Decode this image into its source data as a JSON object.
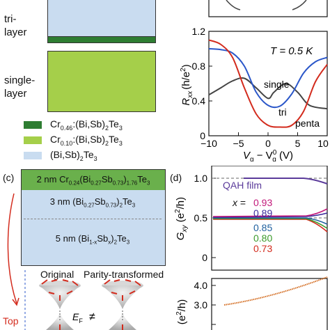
{
  "panel_top_left": {
    "layer_tri": "tri-",
    "layer_tri2": "layer",
    "layer_single": "single-",
    "layer_single2": "layer",
    "legend": [
      {
        "label_pre": "Cr",
        "sub": "0.46",
        "label_post": ":(Bi,Sb)",
        "sub2": "2",
        "te": "Te",
        "sub3": "3",
        "color": "#2e7d32"
      },
      {
        "label_pre": "Cr",
        "sub": "0.10",
        "label_post": ":(Bi,Sb)",
        "sub2": "2",
        "te": "Te",
        "sub3": "3",
        "color": "#a5cf4a"
      },
      {
        "label_pre": "(Bi,Sb)",
        "sub": "2",
        "label_post": "Te",
        "sub2": "3",
        "te": "",
        "sub3": "",
        "color": "#c9dcf0"
      }
    ],
    "colors": {
      "dark_green": "#2e7d32",
      "light_green": "#a5cf4a",
      "light_blue": "#c9dcf0"
    }
  },
  "panel_top_right": {
    "temperature": "T = 0.5 K",
    "ylabel_main": "R",
    "ylabel_sub": "xx",
    "ylabel_unit": "(h/e",
    "ylabel_sup": "2",
    "ylabel_close": ")",
    "xlabel_main": "V",
    "xlabel_sub": "g",
    "xlabel_minus": " − V",
    "xlabel_sup": "0",
    "xlabel_sub2": "g",
    "xlabel_unit": " (V)",
    "yticks": [
      "1.2",
      "0.8",
      "0.4",
      "0"
    ],
    "xticks": [
      "−10",
      "−5",
      "0",
      "5",
      "10"
    ],
    "curve_labels": {
      "single": "single",
      "tri": "tri",
      "penta": "penta"
    }
  },
  "chart_data": {
    "type": "line",
    "xlabel": "Vg − Vg0 (V)",
    "ylabel": "Rxx (h/e2)",
    "xlim": [
      -10,
      10
    ],
    "ylim": [
      0,
      1.2
    ],
    "series": [
      {
        "name": "single",
        "color": "#444444",
        "x": [
          -10,
          -8,
          -6,
          -4,
          -2,
          0,
          1,
          3,
          5,
          7,
          10
        ],
        "y": [
          0.47,
          0.55,
          0.63,
          0.66,
          0.55,
          0.43,
          0.5,
          0.6,
          0.5,
          0.35,
          0.31
        ]
      },
      {
        "name": "tri",
        "color": "#2b57c9",
        "x": [
          -10,
          -8,
          -6,
          -4,
          -2,
          0,
          2,
          4,
          6,
          8,
          10
        ],
        "y": [
          1.0,
          0.99,
          0.95,
          0.8,
          0.5,
          0.35,
          0.34,
          0.48,
          0.72,
          0.85,
          0.9
        ]
      },
      {
        "name": "penta",
        "color": "#d32b1d",
        "x": [
          -10,
          -8,
          -6,
          -4,
          -2,
          0,
          2,
          4,
          6,
          8,
          10
        ],
        "y": [
          1.1,
          1.05,
          0.9,
          0.55,
          0.25,
          0.12,
          0.1,
          0.12,
          0.28,
          0.62,
          0.82
        ]
      }
    ]
  },
  "panel_c": {
    "label": "(c)",
    "layer1_pre": "2 nm Cr",
    "layer1_s1": "0.24",
    "layer1_mid": "(Bi",
    "layer1_s2": "0.27",
    "layer1_mid2": "Sb",
    "layer1_s3": "0.73",
    "layer1_mid3": ")",
    "layer1_s4": "1.76",
    "layer1_end": "Te",
    "layer1_s5": "3",
    "layer2_pre": "3 nm (Bi",
    "layer2_s1": "0.27",
    "layer2_mid": "Sb",
    "layer2_s2": "0.73",
    "layer2_mid2": ")",
    "layer2_s3": "2",
    "layer2_end": "Te",
    "layer2_s4": "3",
    "layer3_pre": "5 nm (Bi",
    "layer3_s1": "1-x",
    "layer3_mid": "Sb",
    "layer3_s2": "x",
    "layer3_mid2": ")",
    "layer3_s3": "2",
    "layer3_end": "Te",
    "layer3_s4": "3",
    "original": "Original",
    "parity": "Parity-transformed",
    "top": "Top",
    "ef": "E",
    "ef_sub": "F",
    "neq": "≠"
  },
  "panel_d": {
    "label": "(d)",
    "qah": "QAH film",
    "yticks": [
      "1.0",
      "0.5",
      "0"
    ],
    "ylabel_main": "G",
    "ylabel_sub": "xy",
    "ylabel_unit": " (e",
    "ylabel_sup": "2",
    "ylabel_close": "/h)",
    "x_eq": "x = 0.93",
    "values": [
      {
        "label": "0.89",
        "color": "#3b2a9b"
      },
      {
        "label": "0.85",
        "color": "#1f5f9e"
      },
      {
        "label": "0.80",
        "color": "#3a9a2a"
      },
      {
        "label": "0.73",
        "color": "#d32b1d"
      }
    ],
    "x_color": "#c2187a"
  },
  "panel_bottom_right": {
    "yticks": [
      "4.0",
      "3.0",
      "2.0"
    ],
    "ylabel": "(e",
    "ylabel_sup": "2",
    "ylabel_close": "/h)"
  }
}
